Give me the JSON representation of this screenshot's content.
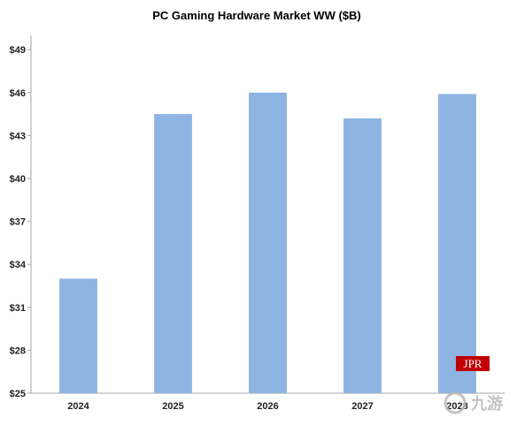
{
  "chart_data": {
    "type": "bar",
    "title": "PC Gaming  Hardware Market WW ($B)",
    "categories": [
      "2024",
      "2025",
      "2026",
      "2027",
      "2028"
    ],
    "values": [
      33,
      44.5,
      46,
      44.2,
      45.9
    ],
    "ylim": [
      25,
      50
    ],
    "yticks": [
      25,
      28,
      31,
      34,
      37,
      40,
      43,
      46,
      49
    ],
    "ytick_labels": [
      "$25",
      "$28",
      "$31",
      "$34",
      "$37",
      "$40",
      "$43",
      "$46",
      "$49"
    ],
    "xlabel": "",
    "ylabel": "",
    "grid": false,
    "legend": "none",
    "bar_color": "#8db4e2",
    "axis_color": "#a6a6a6"
  },
  "logo": {
    "text": "JPR",
    "color": "#c00000"
  },
  "watermark": {
    "text": "九游"
  }
}
